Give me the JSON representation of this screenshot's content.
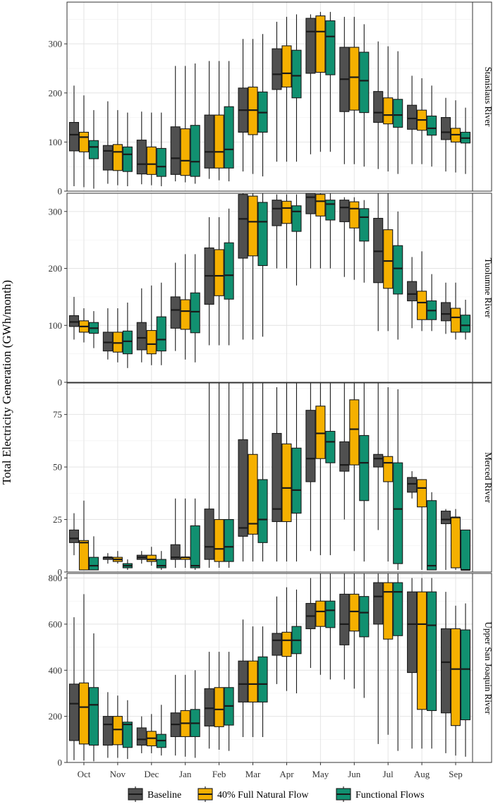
{
  "chart_data": {
    "type": "boxplot",
    "y_axis_title": "Total Electricity Generation (GWh/month)",
    "categories": [
      "Oct",
      "Nov",
      "Dec",
      "Jan",
      "Feb",
      "Mar",
      "Apr",
      "May",
      "Jun",
      "Jul",
      "Aug",
      "Sep"
    ],
    "series": [
      {
        "name": "Baseline",
        "color": "#505050"
      },
      {
        "name": "40% Full Natural Flow",
        "color": "#F5B000"
      },
      {
        "name": "Functional Flows",
        "color": "#119070"
      }
    ],
    "legend": {
      "position": "bottom"
    },
    "panels": [
      {
        "name": "Stanislaus River",
        "ylim": [
          0,
          385
        ],
        "yticks": [
          0,
          100,
          200,
          300
        ],
        "boxes": [
          [
            [
              10,
              82,
              115,
              140,
              215
            ],
            [
              8,
              80,
              110,
              120,
              195
            ],
            [
              5,
              66,
              90,
              103,
              165
            ]
          ],
          [
            [
              15,
              43,
              82,
              93,
              183
            ],
            [
              12,
              42,
              80,
              95,
              165
            ],
            [
              10,
              40,
              75,
              90,
              160
            ]
          ],
          [
            [
              14,
              35,
              55,
              104,
              162
            ],
            [
              12,
              34,
              55,
              90,
              160
            ],
            [
              10,
              30,
              50,
              87,
              160
            ]
          ],
          [
            [
              20,
              34,
              67,
              131,
              255
            ],
            [
              18,
              32,
              62,
              127,
              255
            ],
            [
              15,
              30,
              60,
              134,
              260
            ]
          ],
          [
            [
              25,
              47,
              80,
              155,
              265
            ],
            [
              22,
              47,
              80,
              155,
              265
            ],
            [
              20,
              47,
              85,
              172,
              265
            ]
          ],
          [
            [
              40,
              120,
              165,
              210,
              310
            ],
            [
              35,
              115,
              165,
              212,
              310
            ],
            [
              30,
              120,
              160,
              202,
              320
            ]
          ],
          [
            [
              60,
              207,
              238,
              290,
              345
            ],
            [
              60,
              212,
              240,
              296,
              355
            ],
            [
              60,
              190,
              235,
              287,
              360
            ]
          ],
          [
            [
              75,
              240,
              325,
              352,
              360
            ],
            [
              80,
              242,
              325,
              357,
              365
            ],
            [
              80,
              237,
              315,
              347,
              365
            ]
          ],
          [
            [
              55,
              162,
              228,
              293,
              355
            ],
            [
              55,
              165,
              232,
              293,
              355
            ],
            [
              50,
              160,
              225,
              283,
              340
            ]
          ],
          [
            [
              45,
              140,
              160,
              203,
              305
            ],
            [
              40,
              137,
              155,
              190,
              295
            ],
            [
              35,
              130,
              155,
              187,
              285
            ]
          ],
          [
            [
              55,
              126,
              148,
              175,
              235
            ],
            [
              55,
              124,
              145,
              165,
              230
            ],
            [
              50,
              114,
              128,
              153,
              215
            ]
          ],
          [
            [
              40,
              105,
              120,
              150,
              190
            ],
            [
              38,
              100,
              115,
              128,
              185
            ],
            [
              35,
              98,
              108,
              120,
              170
            ]
          ]
        ]
      },
      {
        "name": "Tuolumne River",
        "ylim": [
          0,
          332
        ],
        "yticks": [
          0,
          100,
          200,
          300
        ],
        "boxes": [
          [
            [
              75,
              98,
              106,
              117,
              150
            ],
            [
              70,
              88,
              98,
              108,
              130
            ],
            [
              60,
              86,
              95,
              105,
              125
            ]
          ],
          [
            [
              40,
              55,
              70,
              88,
              130
            ],
            [
              35,
              53,
              69,
              88,
              130
            ],
            [
              25,
              50,
              72,
              90,
              140
            ]
          ],
          [
            [
              35,
              57,
              78,
              105,
              165
            ],
            [
              30,
              50,
              67,
              91,
              170
            ],
            [
              30,
              55,
              75,
              115,
              175
            ]
          ],
          [
            [
              55,
              95,
              127,
              150,
              210
            ],
            [
              40,
              93,
              125,
              145,
              225
            ],
            [
              35,
              87,
              124,
              157,
              225
            ]
          ],
          [
            [
              65,
              137,
              187,
              236,
              290
            ],
            [
              65,
              152,
              187,
              233,
              290
            ],
            [
              65,
              146,
              188,
              245,
              305
            ]
          ],
          [
            [
              75,
              218,
              287,
              330,
              332
            ],
            [
              75,
              222,
              282,
              327,
              332
            ],
            [
              80,
              205,
              282,
              316,
              332
            ]
          ],
          [
            [
              200,
              275,
              305,
              320,
              330
            ],
            [
              200,
              279,
              306,
              318,
              330
            ],
            [
              170,
              265,
              300,
              310,
              330
            ]
          ],
          [
            [
              200,
              296,
              325,
              332,
              332
            ],
            [
              200,
              292,
              318,
              330,
              332
            ],
            [
              200,
              285,
              313,
              320,
              332
            ]
          ],
          [
            [
              185,
              282,
              307,
              320,
              325
            ],
            [
              180,
              271,
              305,
              317,
              325
            ],
            [
              175,
              248,
              290,
              305,
              320
            ]
          ],
          [
            [
              90,
              175,
              230,
              288,
              332
            ],
            [
              90,
              165,
              213,
              268,
              332
            ],
            [
              75,
              155,
              200,
              240,
              300
            ]
          ],
          [
            [
              95,
              143,
              155,
              177,
              220
            ],
            [
              90,
              110,
              140,
              160,
              230
            ],
            [
              90,
              110,
              126,
              143,
              190
            ]
          ],
          [
            [
              85,
              108,
              120,
              140,
              175
            ],
            [
              75,
              88,
              114,
              130,
              175
            ],
            [
              75,
              88,
              100,
              118,
              145
            ]
          ]
        ]
      },
      {
        "name": "Merced River",
        "ylim": [
          0,
          90
        ],
        "yticks": [
          0,
          25,
          50,
          75
        ],
        "boxes": [
          [
            [
              8,
              14,
              16,
              20,
              28
            ],
            [
              5,
              1,
              14,
              15,
              34
            ],
            [
              2,
              1,
              3,
              7,
              17
            ]
          ],
          [
            [
              4,
              6,
              7,
              7,
              9
            ],
            [
              4,
              5,
              6,
              7,
              10
            ],
            [
              1,
              2,
              3,
              4,
              6
            ]
          ],
          [
            [
              4,
              6,
              7,
              8,
              10
            ],
            [
              3,
              5,
              6,
              8,
              12
            ],
            [
              1,
              2,
              3,
              6,
              10
            ]
          ],
          [
            [
              2,
              6,
              7,
              13,
              35
            ],
            [
              2,
              6,
              7,
              7,
              35
            ],
            [
              1,
              2,
              3,
              22,
              35
            ]
          ],
          [
            [
              2,
              6,
              12,
              30,
              90
            ],
            [
              2,
              5,
              11,
              25,
              90
            ],
            [
              2,
              5,
              12,
              25,
              90
            ]
          ],
          [
            [
              5,
              17,
              21,
              63,
              90
            ],
            [
              5,
              18,
              23,
              56,
              90
            ],
            [
              5,
              14,
              25,
              44,
              90
            ]
          ],
          [
            [
              5,
              24,
              30,
              66,
              88
            ],
            [
              5,
              24,
              40,
              61,
              90
            ],
            [
              5,
              28,
              39,
              59,
              90
            ]
          ],
          [
            [
              10,
              43,
              54,
              77,
              90
            ],
            [
              8,
              54,
              66,
              79,
              90
            ],
            [
              8,
              52,
              62,
              67,
              90
            ]
          ],
          [
            [
              25,
              48,
              51,
              62,
              90
            ],
            [
              10,
              51,
              68,
              82,
              90
            ],
            [
              5,
              34,
              52,
              65,
              90
            ]
          ],
          [
            [
              20,
              50,
              54,
              56,
              90
            ],
            [
              5,
              43,
              52,
              55,
              88
            ],
            [
              1,
              4,
              30,
              52,
              87
            ]
          ],
          [
            [
              35,
              38,
              42,
              45,
              48
            ],
            [
              1,
              31,
              40,
              44,
              44
            ],
            [
              1,
              1,
              3,
              34,
              38
            ]
          ],
          [
            [
              1,
              23,
              25,
              29,
              30
            ],
            [
              1,
              2,
              26,
              26,
              30
            ],
            [
              1,
              1,
              1,
              20,
              20
            ]
          ]
        ]
      },
      {
        "name": "Upper San Joaquin River",
        "ylim": [
          0,
          820
        ],
        "yticks": [
          0,
          200,
          400,
          600,
          800
        ],
        "boxes": [
          [
            [
              10,
              95,
              255,
              340,
              630
            ],
            [
              8,
              80,
              240,
              345,
              730
            ],
            [
              5,
              75,
              250,
              325,
              560
            ]
          ],
          [
            [
              20,
              75,
              165,
              200,
              305
            ],
            [
              20,
              77,
              143,
              200,
              290
            ],
            [
              15,
              65,
              165,
              175,
              270
            ]
          ],
          [
            [
              40,
              75,
              100,
              150,
              200
            ],
            [
              40,
              72,
              105,
              135,
              210
            ],
            [
              30,
              65,
              95,
              122,
              250
            ]
          ],
          [
            [
              30,
              112,
              165,
              215,
              380
            ],
            [
              25,
              112,
              170,
              225,
              380
            ],
            [
              20,
              112,
              170,
              230,
              400
            ]
          ],
          [
            [
              60,
              158,
              235,
              320,
              480
            ],
            [
              55,
              155,
              230,
              325,
              480
            ],
            [
              50,
              162,
              245,
              325,
              480
            ]
          ],
          [
            [
              110,
              262,
              340,
              440,
              620
            ],
            [
              110,
              262,
              340,
              440,
              590
            ],
            [
              110,
              262,
              340,
              458,
              590
            ]
          ],
          [
            [
              340,
              465,
              530,
              560,
              720
            ],
            [
              310,
              460,
              530,
              565,
              760
            ],
            [
              300,
              472,
              530,
              590,
              750
            ]
          ],
          [
            [
              410,
              580,
              635,
              690,
              800
            ],
            [
              380,
              590,
              655,
              700,
              820
            ],
            [
              360,
              585,
              660,
              700,
              820
            ]
          ],
          [
            [
              360,
              510,
              600,
              730,
              820
            ],
            [
              320,
              570,
              655,
              730,
              820
            ],
            [
              280,
              545,
              650,
              720,
              820
            ]
          ],
          [
            [
              80,
              600,
              720,
              780,
              820
            ],
            [
              120,
              535,
              740,
              780,
              820
            ],
            [
              50,
              550,
              740,
              780,
              820
            ]
          ],
          [
            [
              60,
              390,
              600,
              740,
              800
            ],
            [
              60,
              230,
              600,
              740,
              800
            ],
            [
              60,
              225,
              595,
              740,
              800
            ]
          ],
          [
            [
              40,
              215,
              435,
              580,
              740
            ],
            [
              30,
              160,
              405,
              580,
              680
            ],
            [
              25,
              185,
              405,
              575,
              690
            ]
          ]
        ]
      }
    ]
  }
}
